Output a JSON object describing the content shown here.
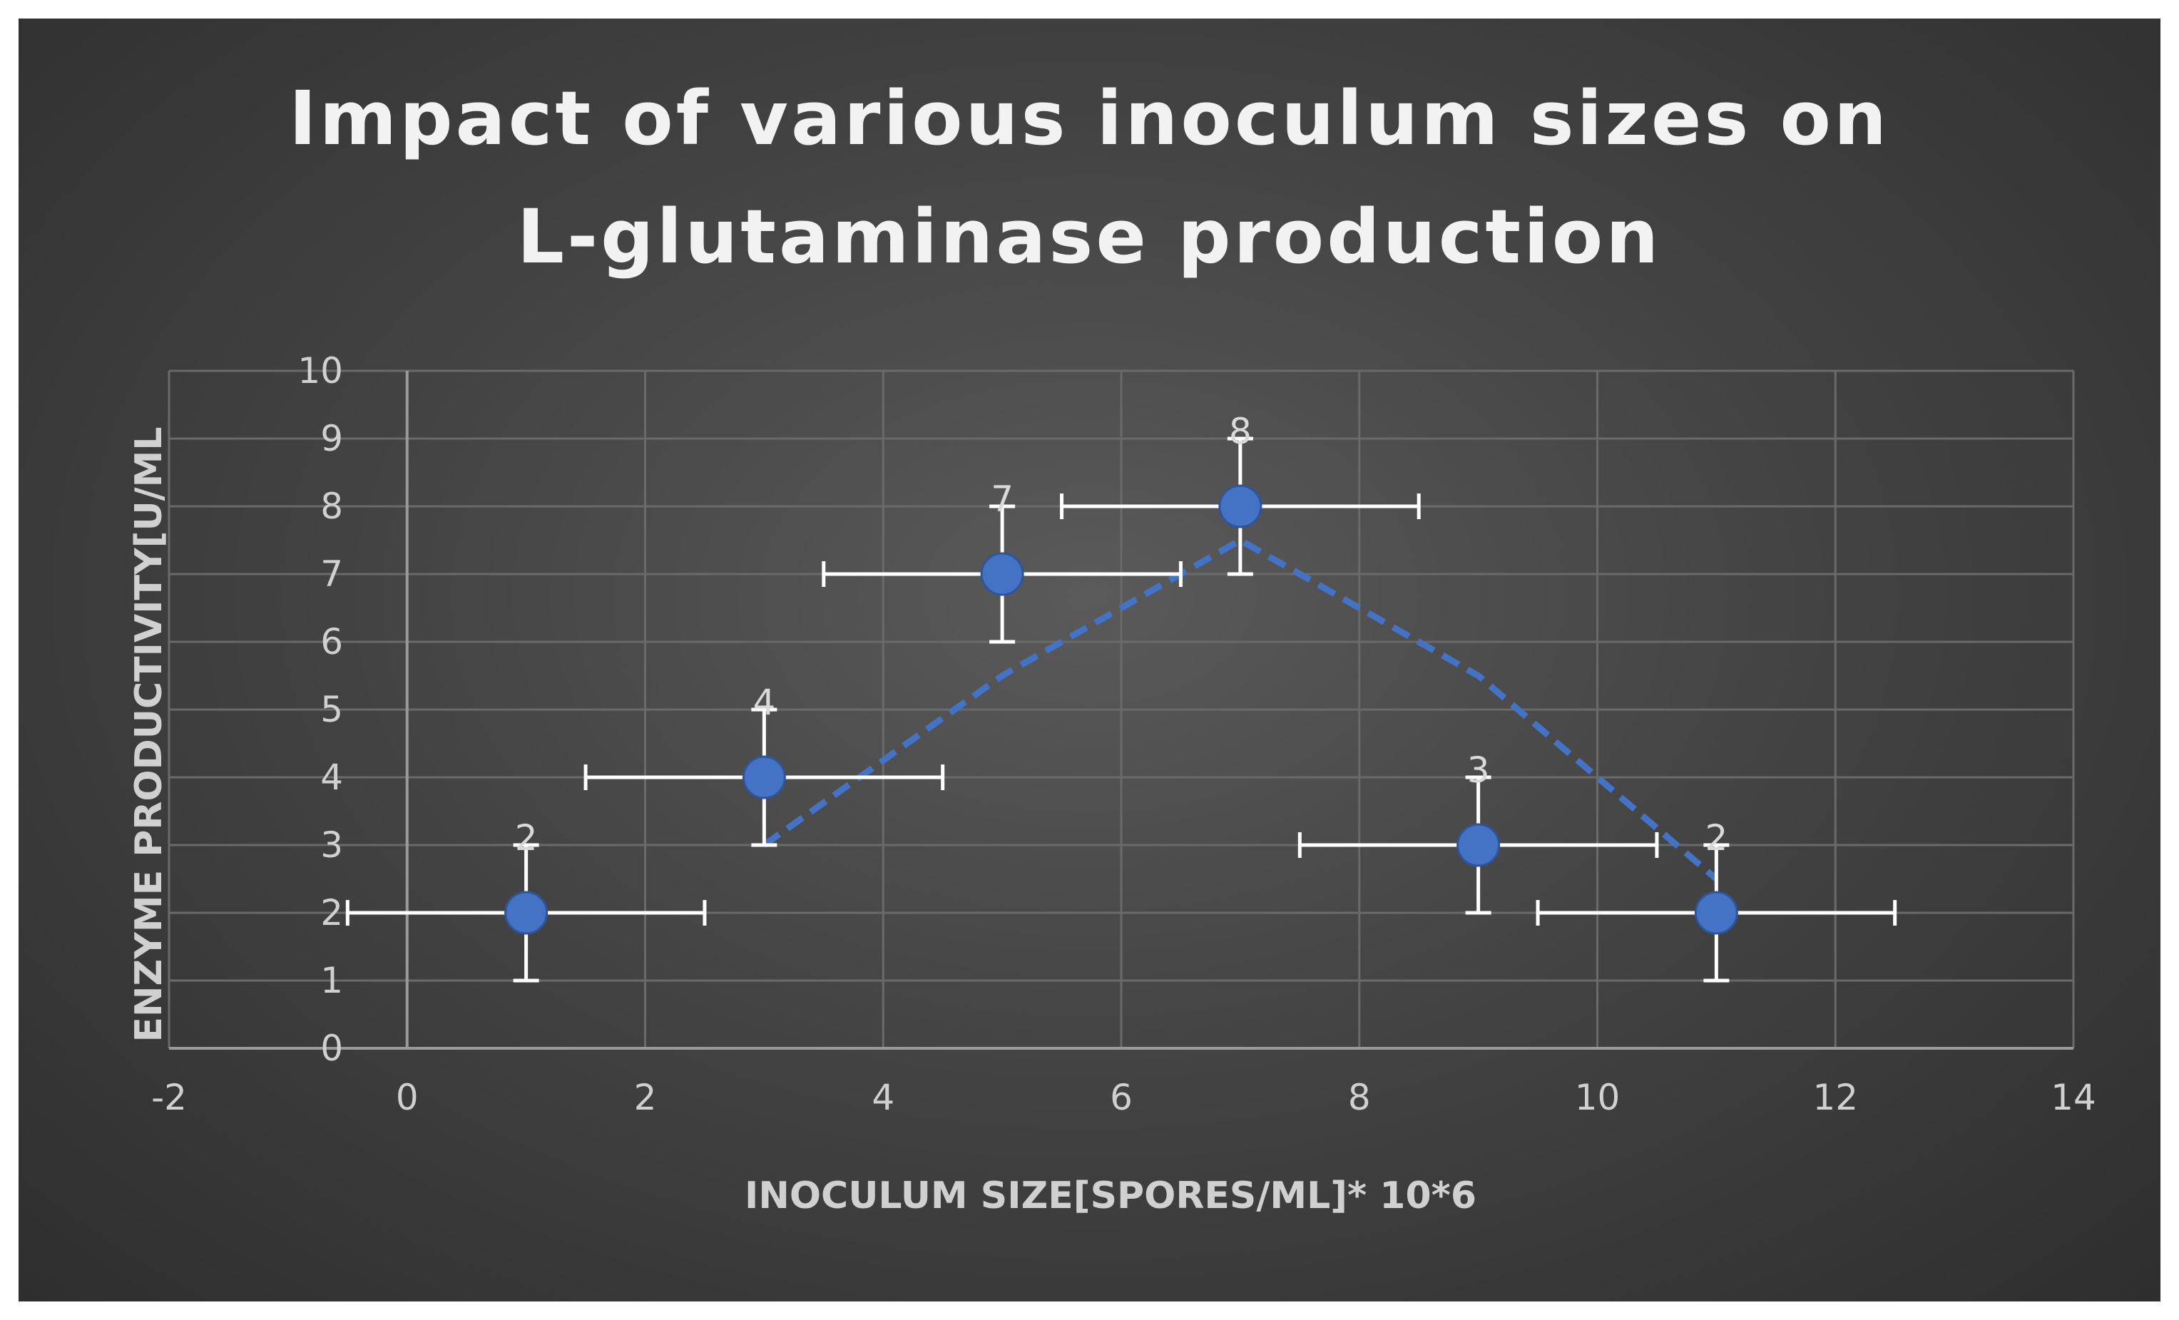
{
  "colors": {
    "marker": "#4472C4",
    "trendline": "#4472C4",
    "error_bar": "#ffffff",
    "grid": "#6a6a6a",
    "text": "#d0d0d0",
    "title": "#f2f2f2"
  },
  "chart_data": {
    "type": "scatter",
    "title": "Impact of various inoculum sizes on L-glutaminase production",
    "title_lines": [
      "Impact of various inoculum sizes on",
      "L-glutaminase production"
    ],
    "xlabel": "INOCULUM SIZE[SPORES/ML]* 10*6",
    "ylabel": "ENZYME PRODUCTIVITY[U/ML",
    "xlim": [
      -2,
      14
    ],
    "ylim": [
      0,
      10
    ],
    "x_ticks": [
      "-2",
      "0",
      "2",
      "4",
      "6",
      "8",
      "10",
      "12",
      "14"
    ],
    "y_ticks": [
      "0",
      "1",
      "2",
      "3",
      "4",
      "5",
      "6",
      "7",
      "8",
      "9",
      "10"
    ],
    "grid": true,
    "legend": "none",
    "x": [
      1,
      3,
      5,
      7,
      9,
      11
    ],
    "y": [
      2,
      4,
      7,
      8,
      3,
      2
    ],
    "data_labels": [
      "2",
      "4",
      "7",
      "8",
      "3",
      "2"
    ],
    "x_error": 1.5,
    "y_error": 1,
    "trendline": {
      "style": "dashed",
      "type": "moving average",
      "x": [
        3,
        5,
        7,
        9,
        11
      ],
      "y": [
        3,
        5.5,
        7.5,
        5.5,
        2.5
      ]
    }
  }
}
